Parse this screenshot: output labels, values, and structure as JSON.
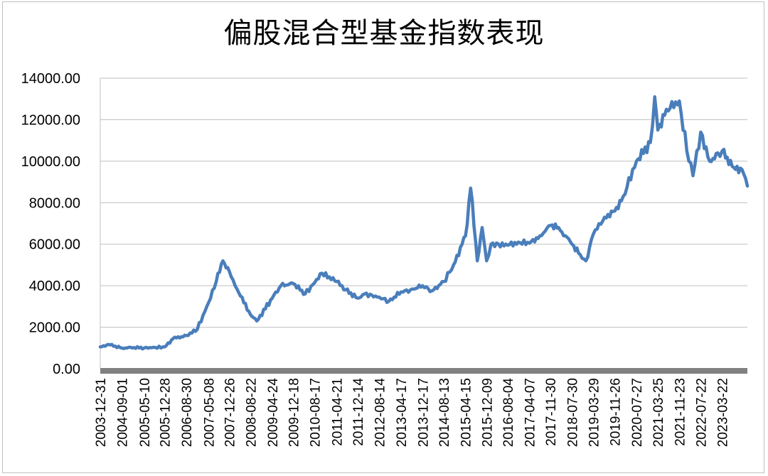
{
  "chart_data": {
    "type": "line",
    "title": "偏股混合型基金指数表现",
    "xlabel": "",
    "ylabel": "",
    "ylim": [
      0,
      14000
    ],
    "yticks": [
      "0.00",
      "2000.00",
      "4000.00",
      "6000.00",
      "8000.00",
      "10000.00",
      "12000.00",
      "14000.00"
    ],
    "grid": true,
    "legend": "none",
    "line_color": "#4a7ebb",
    "x_tick_labels": [
      "2003-12-31",
      "2004-09-01",
      "2005-05-10",
      "2005-12-28",
      "2006-08-30",
      "2007-05-08",
      "2007-12-26",
      "2008-08-22",
      "2009-04-24",
      "2009-12-18",
      "2010-08-17",
      "2011-04-21",
      "2011-12-14",
      "2012-08-14",
      "2013-04-17",
      "2013-12-17",
      "2014-08-13",
      "2015-04-15",
      "2015-12-09",
      "2016-08-04",
      "2017-04-07",
      "2017-11-30",
      "2018-07-30",
      "2019-03-29",
      "2019-11-26",
      "2020-07-27",
      "2021-03-25",
      "2021-11-23",
      "2022-07-22",
      "2023-03-22"
    ],
    "series": [
      {
        "x": [
          "2003-12-31",
          "2004-04-01",
          "2004-09-01",
          "2005-01-15",
          "2005-05-10",
          "2005-08-01",
          "2005-12-28",
          "2006-04-01",
          "2006-08-30",
          "2006-12-31",
          "2007-05-08",
          "2007-08-01",
          "2007-10-16",
          "2007-12-26",
          "2008-03-01",
          "2008-05-01",
          "2008-08-22",
          "2008-11-01",
          "2009-04-24",
          "2009-07-31",
          "2009-12-18",
          "2010-05-01",
          "2010-08-17",
          "2010-11-08",
          "2011-04-21",
          "2011-08-01",
          "2011-12-14",
          "2012-03-01",
          "2012-08-14",
          "2012-12-01",
          "2013-04-17",
          "2013-08-01",
          "2013-12-17",
          "2014-04-01",
          "2014-08-13",
          "2014-12-01",
          "2015-04-15",
          "2015-06-12",
          "2015-08-26",
          "2015-10-20",
          "2015-12-09",
          "2016-01-28",
          "2016-08-04",
          "2016-12-01",
          "2017-04-07",
          "2017-08-01",
          "2017-11-30",
          "2018-03-01",
          "2018-07-30",
          "2018-10-31",
          "2019-01-03",
          "2019-03-29",
          "2019-08-01",
          "2019-11-26",
          "2020-02-28",
          "2020-07-27",
          "2020-12-31",
          "2021-02-18",
          "2021-03-25",
          "2021-06-30",
          "2021-11-23",
          "2022-02-15",
          "2022-04-26",
          "2022-07-22",
          "2022-10-31",
          "2023-01-31",
          "2023-03-22",
          "2023-07-31",
          "2023-10-31",
          "2023-12-31"
        ],
        "values": [
          1050,
          1170,
          1000,
          1020,
          1000,
          1010,
          1050,
          1450,
          1600,
          1900,
          3200,
          4200,
          5200,
          4700,
          4000,
          3500,
          2600,
          2300,
          3400,
          4000,
          4100,
          3600,
          4150,
          4600,
          4200,
          3800,
          3400,
          3600,
          3450,
          3250,
          3700,
          3800,
          4000,
          3750,
          4200,
          5000,
          6400,
          8700,
          5200,
          6800,
          5200,
          6000,
          5950,
          6100,
          6050,
          6400,
          6900,
          6800,
          6000,
          5500,
          5200,
          6500,
          7300,
          7600,
          8300,
          10000,
          10900,
          13100,
          11500,
          12500,
          12900,
          10500,
          9300,
          11400,
          10000,
          10400,
          10500,
          9700,
          9600,
          8800
        ]
      }
    ]
  }
}
